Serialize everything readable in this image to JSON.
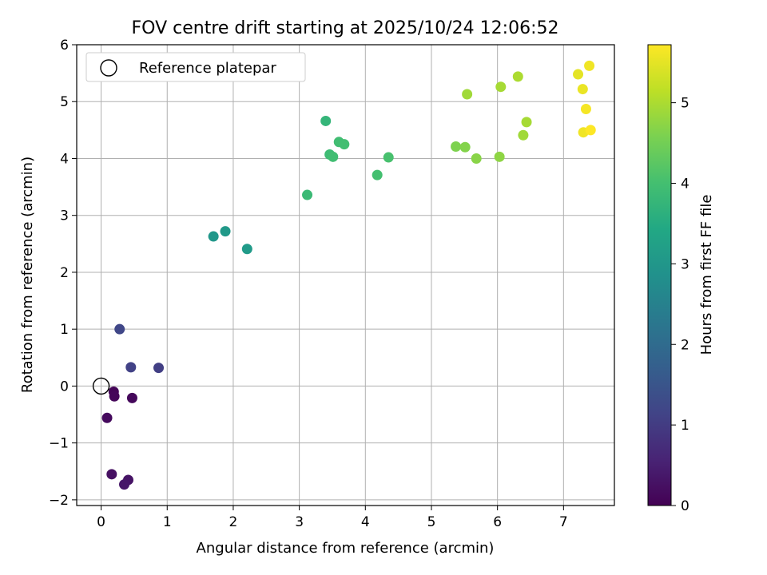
{
  "chart_data": {
    "type": "scatter",
    "title": "FOV centre drift starting at 2025/10/24 12:06:52",
    "xlabel": "Angular distance from reference (arcmin)",
    "ylabel": "Rotation from reference (arcmin)",
    "xlim": [
      -0.37,
      7.77
    ],
    "ylim": [
      -2.1,
      6.0
    ],
    "xticks": [
      0,
      1,
      2,
      3,
      4,
      5,
      6,
      7
    ],
    "yticks": [
      -2,
      -1,
      0,
      1,
      2,
      3,
      4,
      5,
      6
    ],
    "grid": true,
    "legend": {
      "placement": "top-left",
      "entries": [
        "Reference platepar"
      ]
    },
    "reference_point": {
      "x": 0,
      "y": 0,
      "label": "Reference platepar"
    },
    "colorbar": {
      "label": "Hours from first FF file",
      "range": [
        0,
        5.72
      ],
      "ticks": [
        0,
        1,
        2,
        3,
        4,
        5
      ],
      "colormap": "viridis"
    },
    "points": [
      {
        "x": 0.19,
        "y": -0.1,
        "hours": 0.05
      },
      {
        "x": 0.2,
        "y": -0.18,
        "hours": 0.08
      },
      {
        "x": 0.47,
        "y": -0.21,
        "hours": 0.12
      },
      {
        "x": 0.09,
        "y": -0.56,
        "hours": 0.15
      },
      {
        "x": 0.16,
        "y": -1.55,
        "hours": 0.25
      },
      {
        "x": 0.41,
        "y": -1.65,
        "hours": 0.3
      },
      {
        "x": 0.35,
        "y": -1.73,
        "hours": 0.35
      },
      {
        "x": 0.28,
        "y": 1.0,
        "hours": 1.2
      },
      {
        "x": 0.45,
        "y": 0.33,
        "hours": 1.1
      },
      {
        "x": 0.87,
        "y": 0.32,
        "hours": 1.05
      },
      {
        "x": 1.7,
        "y": 2.63,
        "hours": 3.0
      },
      {
        "x": 1.88,
        "y": 2.72,
        "hours": 3.05
      },
      {
        "x": 2.21,
        "y": 2.41,
        "hours": 3.1
      },
      {
        "x": 3.12,
        "y": 3.36,
        "hours": 3.85
      },
      {
        "x": 3.4,
        "y": 4.66,
        "hours": 3.75
      },
      {
        "x": 3.46,
        "y": 4.07,
        "hours": 3.9
      },
      {
        "x": 3.51,
        "y": 4.03,
        "hours": 3.95
      },
      {
        "x": 3.6,
        "y": 4.29,
        "hours": 3.95
      },
      {
        "x": 3.68,
        "y": 4.25,
        "hours": 3.98
      },
      {
        "x": 4.18,
        "y": 3.71,
        "hours": 4.0
      },
      {
        "x": 4.35,
        "y": 4.02,
        "hours": 4.05
      },
      {
        "x": 5.37,
        "y": 4.21,
        "hours": 4.6
      },
      {
        "x": 5.51,
        "y": 4.2,
        "hours": 4.65
      },
      {
        "x": 5.54,
        "y": 5.13,
        "hours": 4.9
      },
      {
        "x": 5.68,
        "y": 4.0,
        "hours": 4.7
      },
      {
        "x": 6.03,
        "y": 4.03,
        "hours": 4.75
      },
      {
        "x": 6.05,
        "y": 5.26,
        "hours": 4.95
      },
      {
        "x": 6.31,
        "y": 5.44,
        "hours": 5.0
      },
      {
        "x": 6.39,
        "y": 4.41,
        "hours": 4.9
      },
      {
        "x": 6.44,
        "y": 4.64,
        "hours": 4.95
      },
      {
        "x": 7.22,
        "y": 5.48,
        "hours": 5.5
      },
      {
        "x": 7.29,
        "y": 5.22,
        "hours": 5.55
      },
      {
        "x": 7.39,
        "y": 5.63,
        "hours": 5.6
      },
      {
        "x": 7.34,
        "y": 4.87,
        "hours": 5.65
      },
      {
        "x": 7.3,
        "y": 4.46,
        "hours": 5.6
      },
      {
        "x": 7.41,
        "y": 4.5,
        "hours": 5.72
      }
    ]
  }
}
